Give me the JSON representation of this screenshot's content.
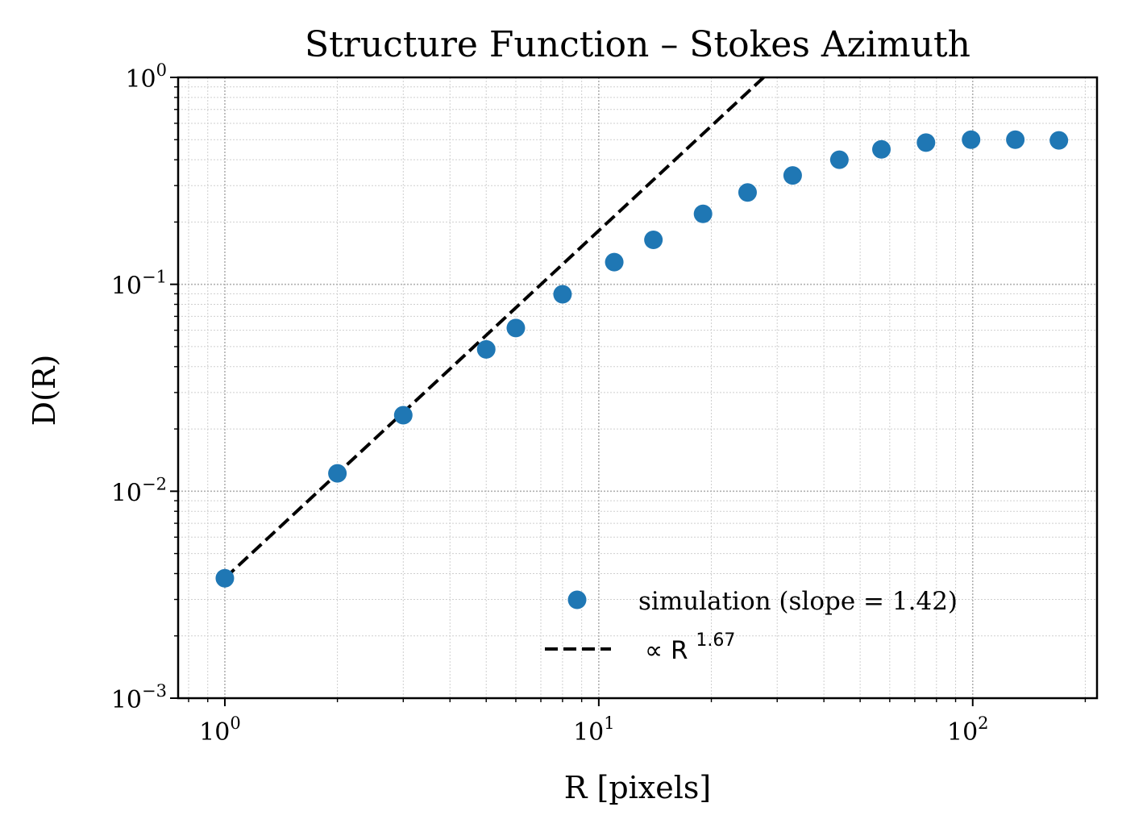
{
  "chart_data": {
    "type": "scatter",
    "title": "Structure Function – Stokes Azimuth",
    "xlabel": "R [pixels]",
    "ylabel": "D(R)",
    "xscale": "log",
    "yscale": "log",
    "xlim": [
      0.75,
      215
    ],
    "ylim": [
      0.001,
      1
    ],
    "grid": true,
    "legend_position": "lower-right",
    "xtick_base": "10",
    "xticks": [
      {
        "value": 1,
        "exp": "0"
      },
      {
        "value": 10,
        "exp": "1"
      },
      {
        "value": 100,
        "exp": "2"
      }
    ],
    "ytick_base": "10",
    "yticks": [
      {
        "value": 0.001,
        "exp": "−3"
      },
      {
        "value": 0.01,
        "exp": "−2"
      },
      {
        "value": 0.1,
        "exp": "−1"
      },
      {
        "value": 1,
        "exp": "0"
      }
    ],
    "series": [
      {
        "name": "simulation (slope = 1.42)",
        "kind": "scatter",
        "color": "#1f77b4",
        "x": [
          1,
          2,
          3,
          5,
          6,
          8,
          11,
          14,
          19,
          25,
          33,
          44,
          57,
          75,
          99,
          130,
          170
        ],
        "y": [
          0.0038,
          0.0122,
          0.0233,
          0.0485,
          0.0615,
          0.0895,
          0.128,
          0.164,
          0.219,
          0.278,
          0.336,
          0.4,
          0.449,
          0.484,
          0.5,
          0.5,
          0.496
        ]
      },
      {
        "name": "∝ R",
        "name_exponent": "1.67",
        "kind": "line",
        "style": "dashed",
        "color": "#000000",
        "slope": 1.67,
        "x": [
          1,
          27.6
        ],
        "y": [
          0.0038,
          1.0
        ]
      }
    ]
  }
}
